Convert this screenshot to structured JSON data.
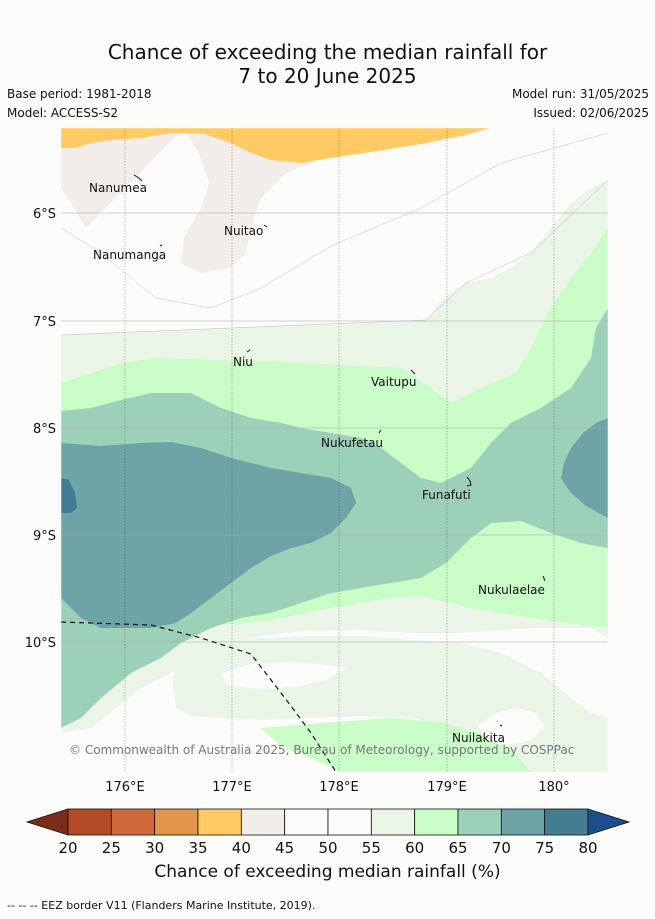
{
  "header": {
    "title_line1": "Chance of exceeding the median rainfall for",
    "title_line2": "7 to 20 June 2025",
    "base_period": "Base period: 1981-2018",
    "model": "Model: ACCESS-S2",
    "model_run": "Model run: 31/05/2025",
    "issued": "Issued: 02/06/2025"
  },
  "map": {
    "lon_ticks": [
      "176°E",
      "177°E",
      "178°E",
      "179°E",
      "180°"
    ],
    "lat_ticks": [
      "6°S",
      "7°S",
      "8°S",
      "9°S",
      "10°S"
    ],
    "places": [
      {
        "name": "Nanumea"
      },
      {
        "name": "Nuitao"
      },
      {
        "name": "Nanumanga"
      },
      {
        "name": "Niu"
      },
      {
        "name": "Vaitupu"
      },
      {
        "name": "Nukufetau"
      },
      {
        "name": "Funafuti"
      },
      {
        "name": "Nukulaelae"
      },
      {
        "name": "Nuilakita"
      }
    ],
    "credit": "© Commonwealth of Australia 2025, Bureau of Meteorology, supported by COSPPac"
  },
  "colorbar": {
    "ticks": [
      "20",
      "25",
      "30",
      "35",
      "40",
      "45",
      "50",
      "55",
      "60",
      "65",
      "70",
      "75",
      "80"
    ],
    "colors": [
      "#7a2e17",
      "#b34a26",
      "#d2693a",
      "#e3954d",
      "#fdca63",
      "#f2ede8",
      "#fbfcfa",
      "#fbfcfa",
      "#eaf5e8",
      "#c9fcc7",
      "#9dd0b8",
      "#6ea3a8",
      "#447c93",
      "#1a4f8a"
    ],
    "label": "Chance of exceeding median rainfall (%)"
  },
  "footnote": "-- -- -- EEZ border V11 (Flanders Marine Institute, 2019)."
}
